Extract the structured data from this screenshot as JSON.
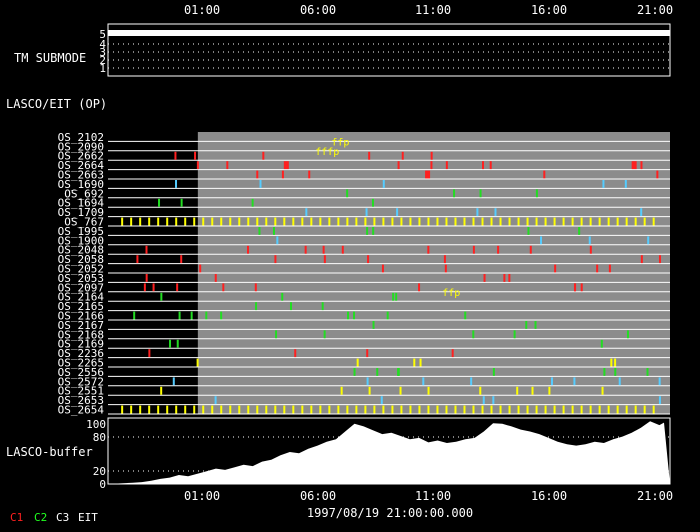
{
  "chart_data": {
    "type": "timeline",
    "date_label": "1997/08/19 21:00:00.000",
    "time_ticks": [
      "01:00",
      "06:00",
      "11:00",
      "16:00",
      "21:00"
    ],
    "panel_labels": {
      "tm_submode": "TM SUBMODE",
      "lasco_eit": "LASCO/EIT (OP)",
      "buffer": "LASCO-buffer"
    },
    "submode_ticks": [
      "5",
      "4",
      "3",
      "2",
      "1"
    ],
    "buffer_ticks": [
      "100",
      "80",
      "20",
      "0"
    ],
    "legend": [
      {
        "label": "C1",
        "color": "#ff2020"
      },
      {
        "label": "C2",
        "color": "#20ff20"
      },
      {
        "label": "C3",
        "color": "#ffffff"
      },
      {
        "label": "EIT",
        "color": "#ffffff"
      }
    ],
    "tm_submode_value": 5,
    "data_gap_end_hour": 0.82,
    "os_rows": [
      "OS_2102",
      "OS_2090",
      "OS_2662",
      "OS_2664",
      "OS_2663",
      "OS_1690",
      "OS_692",
      "OS_1694",
      "OS_1709",
      "OS_767",
      "OS_1995",
      "OS_1900",
      "OS_2048",
      "OS_2058",
      "OS_2052",
      "OS_2053",
      "OS_2097",
      "OS_2164",
      "OS_2165",
      "OS_2166",
      "OS_2167",
      "OS_2168",
      "OS_2169",
      "OS_2236",
      "OS_2265",
      "OS_2556",
      "OS_2572",
      "OS_2551",
      "OS_2653",
      "OS_2654"
    ],
    "annotations": [
      {
        "text": "ffp",
        "row": 0,
        "hour": 6.6,
        "color": "#ffff00"
      },
      {
        "text": "fffp",
        "row": 1,
        "hour": 5.9,
        "color": "#ffff00"
      },
      {
        "text": "ffp",
        "row": 16,
        "hour": 11.4,
        "color": "#ffff00"
      }
    ],
    "buffer_series": [
      [
        -2.0,
        2
      ],
      [
        -1.6,
        3
      ],
      [
        -1.2,
        5
      ],
      [
        -0.8,
        8
      ],
      [
        -0.4,
        10
      ],
      [
        0.0,
        14
      ],
      [
        0.4,
        12
      ],
      [
        0.8,
        16
      ],
      [
        1.2,
        20
      ],
      [
        1.6,
        24
      ],
      [
        2.0,
        22
      ],
      [
        2.4,
        26
      ],
      [
        2.8,
        30
      ],
      [
        3.2,
        28
      ],
      [
        3.6,
        35
      ],
      [
        4.0,
        38
      ],
      [
        4.4,
        45
      ],
      [
        4.8,
        50
      ],
      [
        5.2,
        48
      ],
      [
        5.6,
        55
      ],
      [
        6.0,
        60
      ],
      [
        6.4,
        66
      ],
      [
        6.8,
        70
      ],
      [
        7.2,
        82
      ],
      [
        7.6,
        94
      ],
      [
        8.0,
        90
      ],
      [
        8.4,
        84
      ],
      [
        8.8,
        78
      ],
      [
        9.2,
        80
      ],
      [
        9.6,
        75
      ],
      [
        10.0,
        70
      ],
      [
        10.4,
        72
      ],
      [
        10.8,
        65
      ],
      [
        11.2,
        68
      ],
      [
        11.6,
        64
      ],
      [
        12.0,
        66
      ],
      [
        12.4,
        70
      ],
      [
        12.8,
        72
      ],
      [
        13.2,
        82
      ],
      [
        13.6,
        95
      ],
      [
        14.0,
        94
      ],
      [
        14.4,
        90
      ],
      [
        14.8,
        85
      ],
      [
        15.2,
        82
      ],
      [
        15.6,
        78
      ],
      [
        16.0,
        72
      ],
      [
        16.4,
        66
      ],
      [
        16.8,
        62
      ],
      [
        17.2,
        60
      ],
      [
        17.6,
        62
      ],
      [
        18.0,
        66
      ],
      [
        18.4,
        64
      ],
      [
        18.8,
        70
      ],
      [
        19.2,
        74
      ],
      [
        19.6,
        80
      ],
      [
        20.0,
        88
      ],
      [
        20.4,
        98
      ],
      [
        20.8,
        92
      ],
      [
        21.0,
        96
      ]
    ]
  }
}
